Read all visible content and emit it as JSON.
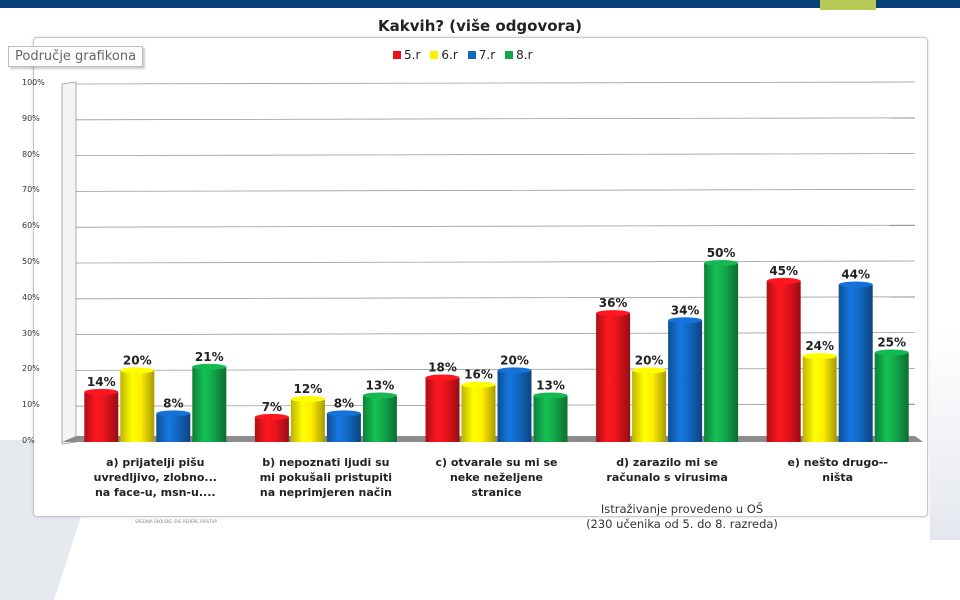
{
  "chart_data": {
    "type": "bar",
    "title": "Kakvih? (više odgovora)",
    "tooltip": "Područje grafikona",
    "categories": [
      "a)    prijatelji pišu\nuvredljivo, zlobno...\nna face-u, msn-u....",
      "b)    nepoznati ljudi su\nmi pokušali pristupiti\nna neprimjeren način",
      "c)    otvarale su mi se\nneke neželjene\nstranice",
      "d)    zarazilo mi se\nračunalo s virusima",
      "e)    nešto drugo--\nništa"
    ],
    "series": [
      {
        "name": "5.r",
        "color": "#e8141b",
        "values": [
          14,
          7,
          18,
          36,
          45
        ]
      },
      {
        "name": "6.r",
        "color": "#ffee00",
        "values": [
          20,
          12,
          16,
          20,
          24
        ]
      },
      {
        "name": "7.r",
        "color": "#1268c4",
        "values": [
          8,
          8,
          20,
          34,
          44
        ]
      },
      {
        "name": "8.r",
        "color": "#12a84a",
        "values": [
          21,
          13,
          13,
          50,
          25
        ]
      }
    ],
    "value_suffix": "%",
    "ylim": [
      0,
      100
    ],
    "yticks": [
      "0%",
      "10%",
      "20%",
      "30%",
      "40%",
      "50%",
      "60%",
      "70%",
      "80%",
      "90%",
      "100%"
    ],
    "grid": true,
    "legend_position": "top"
  },
  "footnote": "Istraživanje provedeno u OŠ\n(230 učenika od 5. do 8. razreda)",
  "tiny_text": "SREDNJA SKOLSKO SVE REHERC PRISTUP"
}
